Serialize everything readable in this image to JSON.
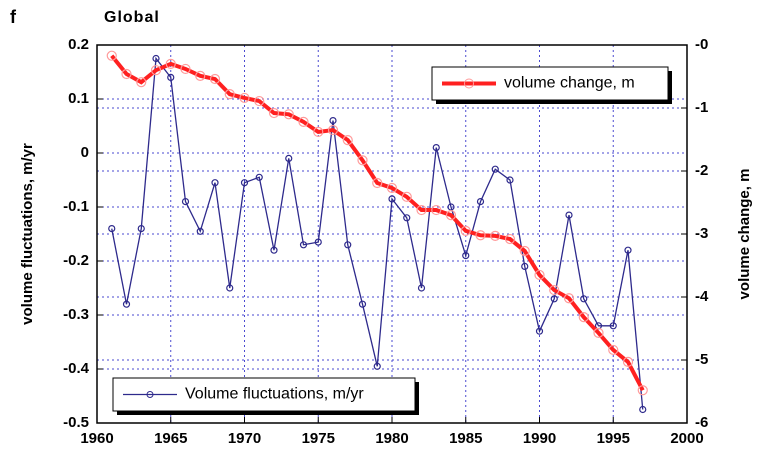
{
  "chart_data": {
    "type": "line",
    "panel_label": "f",
    "title": "Global",
    "ylabel": "volume fluctuations, m/yr",
    "y2label": "volume change, m",
    "x": [
      1961,
      1962,
      1963,
      1964,
      1965,
      1966,
      1967,
      1968,
      1969,
      1970,
      1971,
      1972,
      1973,
      1974,
      1975,
      1976,
      1977,
      1978,
      1979,
      1980,
      1981,
      1982,
      1983,
      1984,
      1985,
      1986,
      1987,
      1988,
      1989,
      1990,
      1991,
      1992,
      1993,
      1994,
      1995,
      1996,
      1997
    ],
    "xlim": [
      1960,
      2000
    ],
    "xticks": [
      1960,
      1965,
      1970,
      1975,
      1980,
      1985,
      1990,
      1995,
      2000
    ],
    "ylim": [
      -0.5,
      0.2
    ],
    "yticks": [
      0.2,
      0.1,
      0,
      -0.1,
      -0.2,
      -0.3,
      -0.4,
      -0.5
    ],
    "y2lim": [
      -6,
      0
    ],
    "y2ticks": [
      {
        "value": 0,
        "label": "-0"
      },
      -1,
      -2,
      -3,
      -4,
      -5,
      -6
    ],
    "grid": true,
    "series": [
      {
        "name": "Volume fluctuations, m/yr",
        "color": "#2e2a8c",
        "axis": "y",
        "legend_loc": "lower left",
        "values": [
          -0.14,
          -0.28,
          -0.14,
          0.175,
          0.14,
          -0.09,
          -0.145,
          -0.055,
          -0.25,
          -0.055,
          -0.045,
          -0.18,
          -0.01,
          -0.17,
          -0.165,
          0.06,
          -0.17,
          -0.28,
          -0.395,
          -0.085,
          -0.12,
          -0.25,
          0.01,
          -0.1,
          -0.19,
          -0.09,
          -0.03,
          -0.05,
          -0.21,
          -0.33,
          -0.27,
          -0.115,
          -0.27,
          -0.32,
          -0.32,
          -0.18,
          -0.475
        ]
      },
      {
        "name": "volume change, m",
        "color": "#ff2020",
        "axis": "y2",
        "legend_loc": "upper right",
        "values": [
          -0.17,
          -0.46,
          -0.59,
          -0.4,
          -0.3,
          -0.38,
          -0.49,
          -0.54,
          -0.78,
          -0.84,
          -0.89,
          -1.08,
          -1.1,
          -1.22,
          -1.38,
          -1.35,
          -1.51,
          -1.83,
          -2.19,
          -2.27,
          -2.41,
          -2.62,
          -2.62,
          -2.7,
          -2.95,
          -3.02,
          -3.03,
          -3.08,
          -3.27,
          -3.65,
          -3.89,
          -4.02,
          -4.32,
          -4.57,
          -4.84,
          -5.03,
          -5.48
        ]
      }
    ]
  }
}
